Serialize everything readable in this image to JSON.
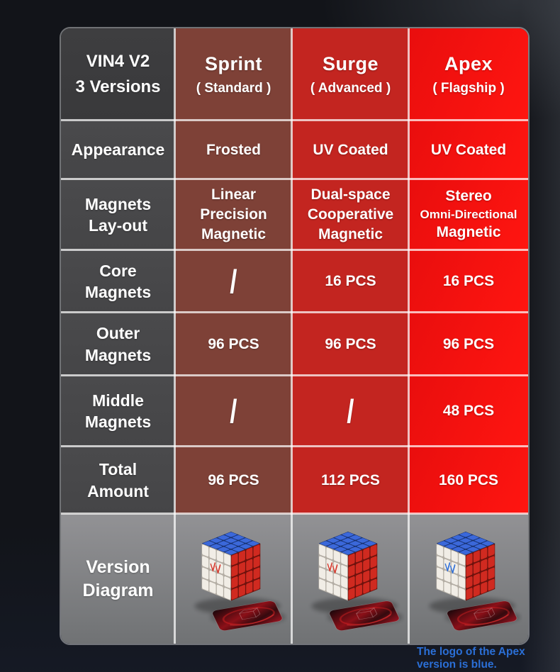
{
  "colors": {
    "sprint_red": "#7e4137",
    "surge_red": "#c32520",
    "apex_red": "#e90e0e",
    "apex_red_bright": "#ff1510",
    "label_gray": "#4a4a4c",
    "diagram_gray_light": "#929295",
    "diagram_gray_dark": "#707274",
    "note_blue": "#2b6fd6"
  },
  "table": {
    "columns": [
      {
        "line1": "VIN4 V2",
        "line2": "3 Versions"
      },
      {
        "name": "Sprint",
        "subtitle": "( Standard )"
      },
      {
        "name": "Surge",
        "subtitle": "( Advanced )"
      },
      {
        "name": "Apex",
        "subtitle": "( Flagship )"
      }
    ],
    "rows": [
      {
        "label": "Appearance",
        "values": [
          "Frosted",
          "UV Coated",
          "UV Coated"
        ]
      },
      {
        "label": "Magnets\nLay-out",
        "values": [
          "Linear\nPrecision\nMagnetic",
          "Dual-space\nCooperative\nMagnetic"
        ],
        "apex": {
          "line1": "Stereo",
          "line2": "Omni-Directional",
          "line3": "Magnetic"
        }
      },
      {
        "label": "Core\nMagnets",
        "values": [
          "/",
          "16 PCS",
          "16 PCS"
        ]
      },
      {
        "label": "Outer\nMagnets",
        "values": [
          "96 PCS",
          "96 PCS",
          "96 PCS"
        ]
      },
      {
        "label": "Middle\nMagnets",
        "values": [
          "/",
          "/",
          "48 PCS"
        ]
      },
      {
        "label": "Total\nAmount",
        "values": [
          "96 PCS",
          "112 PCS",
          "160 PCS"
        ]
      }
    ],
    "version_row": {
      "label": "Version\nDiagram",
      "cubes": [
        {
          "name": "sprint-cube",
          "logo_color": "#d63a2e"
        },
        {
          "name": "surge-cube",
          "logo_color": "#d63a2e"
        },
        {
          "name": "apex-cube",
          "logo_color": "#2f6fd8"
        }
      ]
    }
  },
  "note": {
    "text": "The logo of the Apex\nversion is blue."
  }
}
